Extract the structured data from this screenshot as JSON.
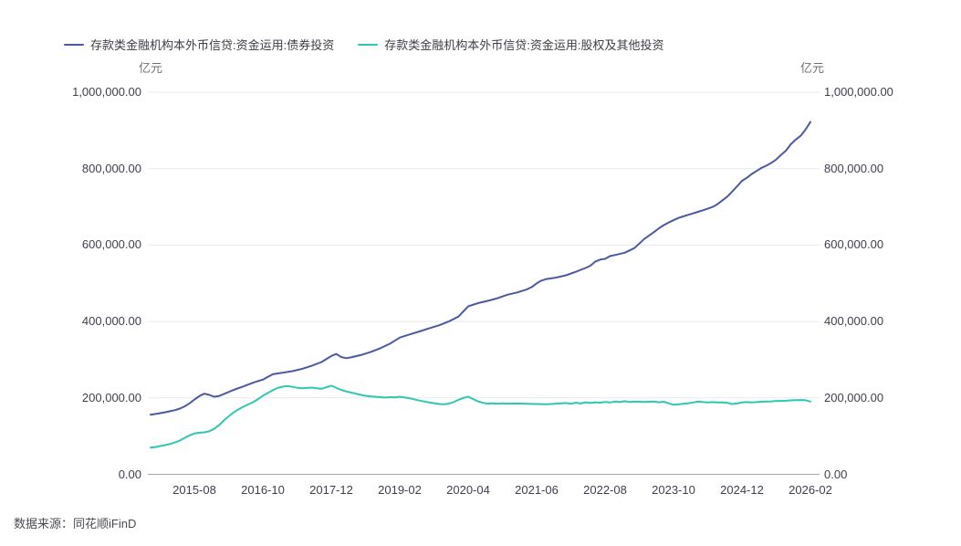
{
  "page": {
    "source_note": "数据来源：同花顺iFinD"
  },
  "axes": {
    "unit_left": "亿元",
    "unit_right": "亿元"
  },
  "chart_data": {
    "type": "line",
    "title": "",
    "ylabel": "亿元",
    "ylim": [
      0,
      1000000
    ],
    "grid": "horizontal",
    "legend_position": "top-left",
    "y_tick_labels": [
      "1,000,000.00",
      "800,000.00",
      "600,000.00",
      "400,000.00",
      "200,000.00",
      "0.00"
    ],
    "x_start": "2014-11",
    "x_end": "2026-02",
    "x_point_count": 136,
    "x_tick_labels": [
      "2015-08",
      "2016-10",
      "2017-12",
      "2019-02",
      "2020-04",
      "2021-06",
      "2022-08",
      "2023-10",
      "2024-12",
      "2026-02"
    ],
    "x_tick_indices": [
      9,
      23,
      37,
      51,
      65,
      79,
      93,
      107,
      121,
      135
    ],
    "series": [
      {
        "name": "存款类金融机构本外币信贷:资金运用:债券投资",
        "color": "#4B5AA0",
        "points": [
          [
            0,
            156000
          ],
          [
            1,
            158000
          ],
          [
            2,
            160000
          ],
          [
            3,
            162500
          ],
          [
            4,
            165000
          ],
          [
            5,
            168000
          ],
          [
            6,
            172000
          ],
          [
            7,
            178000
          ],
          [
            8,
            186000
          ],
          [
            9,
            196000
          ],
          [
            10,
            205000
          ],
          [
            11,
            211000
          ],
          [
            12,
            208000
          ],
          [
            13,
            203000
          ],
          [
            14,
            205000
          ],
          [
            15,
            210000
          ],
          [
            17,
            221000
          ],
          [
            19,
            230000
          ],
          [
            21,
            240000
          ],
          [
            23,
            248000
          ],
          [
            24,
            255000
          ],
          [
            25,
            262000
          ],
          [
            26,
            264000
          ],
          [
            27,
            266000
          ],
          [
            29,
            270000
          ],
          [
            31,
            276000
          ],
          [
            33,
            284000
          ],
          [
            35,
            294000
          ],
          [
            36,
            302000
          ],
          [
            37,
            310000
          ],
          [
            38,
            315000
          ],
          [
            39,
            307000
          ],
          [
            40,
            304000
          ],
          [
            41,
            306000
          ],
          [
            43,
            312000
          ],
          [
            45,
            320000
          ],
          [
            47,
            330000
          ],
          [
            49,
            342000
          ],
          [
            51,
            358000
          ],
          [
            53,
            366000
          ],
          [
            55,
            374000
          ],
          [
            57,
            382000
          ],
          [
            59,
            390000
          ],
          [
            61,
            400000
          ],
          [
            63,
            413000
          ],
          [
            65,
            440000
          ],
          [
            67,
            448000
          ],
          [
            69,
            454000
          ],
          [
            71,
            461000
          ],
          [
            73,
            470000
          ],
          [
            75,
            476000
          ],
          [
            77,
            484000
          ],
          [
            78,
            490000
          ],
          [
            79,
            500000
          ],
          [
            80,
            507000
          ],
          [
            81,
            511000
          ],
          [
            83,
            515000
          ],
          [
            85,
            521000
          ],
          [
            87,
            530000
          ],
          [
            89,
            540000
          ],
          [
            90,
            546000
          ],
          [
            91,
            557000
          ],
          [
            92,
            562000
          ],
          [
            93,
            564000
          ],
          [
            94,
            571000
          ],
          [
            95,
            574000
          ],
          [
            97,
            580000
          ],
          [
            99,
            592000
          ],
          [
            100,
            604000
          ],
          [
            101,
            616000
          ],
          [
            102,
            625000
          ],
          [
            103,
            634000
          ],
          [
            104,
            644000
          ],
          [
            105,
            652000
          ],
          [
            106,
            659000
          ],
          [
            107,
            665000
          ],
          [
            108,
            671000
          ],
          [
            109,
            675000
          ],
          [
            110,
            679000
          ],
          [
            111,
            683000
          ],
          [
            112,
            687000
          ],
          [
            113,
            691000
          ],
          [
            114,
            695000
          ],
          [
            115,
            700000
          ],
          [
            116,
            707000
          ],
          [
            117,
            717000
          ],
          [
            118,
            727000
          ],
          [
            119,
            740000
          ],
          [
            120,
            754000
          ],
          [
            121,
            768000
          ],
          [
            122,
            776000
          ],
          [
            123,
            786000
          ],
          [
            124,
            794000
          ],
          [
            125,
            802000
          ],
          [
            126,
            808000
          ],
          [
            127,
            815000
          ],
          [
            128,
            824000
          ],
          [
            129,
            836000
          ],
          [
            130,
            847000
          ],
          [
            131,
            864000
          ],
          [
            132,
            876000
          ],
          [
            133,
            886000
          ],
          [
            134,
            902000
          ],
          [
            135,
            922000
          ]
        ]
      },
      {
        "name": "存款类金融机构本外币信贷:资金运用:股权及其他投资",
        "color": "#2FC6B2",
        "points": [
          [
            0,
            70000
          ],
          [
            1,
            71500
          ],
          [
            2,
            74000
          ],
          [
            3,
            76500
          ],
          [
            4,
            79500
          ],
          [
            5,
            83500
          ],
          [
            6,
            88500
          ],
          [
            7,
            95500
          ],
          [
            8,
            102000
          ],
          [
            9,
            107000
          ],
          [
            10,
            109000
          ],
          [
            11,
            110000
          ],
          [
            12,
            112500
          ],
          [
            13,
            119000
          ],
          [
            14,
            128500
          ],
          [
            15,
            141000
          ],
          [
            16,
            152000
          ],
          [
            17,
            162000
          ],
          [
            18,
            170000
          ],
          [
            19,
            177000
          ],
          [
            20,
            183000
          ],
          [
            21,
            189000
          ],
          [
            22,
            197000
          ],
          [
            23,
            206000
          ],
          [
            24,
            213000
          ],
          [
            25,
            220000
          ],
          [
            26,
            226000
          ],
          [
            27,
            229500
          ],
          [
            28,
            231000
          ],
          [
            29,
            229000
          ],
          [
            30,
            226500
          ],
          [
            31,
            225000
          ],
          [
            32,
            226000
          ],
          [
            33,
            227000
          ],
          [
            34,
            225000
          ],
          [
            35,
            224000
          ],
          [
            36,
            228000
          ],
          [
            37,
            232000
          ],
          [
            38,
            226000
          ],
          [
            39,
            221000
          ],
          [
            40,
            217000
          ],
          [
            41,
            214000
          ],
          [
            42,
            211000
          ],
          [
            43,
            208000
          ],
          [
            44,
            205500
          ],
          [
            45,
            203500
          ],
          [
            46,
            203000
          ],
          [
            47,
            202000
          ],
          [
            48,
            201000
          ],
          [
            49,
            202000
          ],
          [
            50,
            201500
          ],
          [
            51,
            203000
          ],
          [
            52,
            201000
          ],
          [
            53,
            199000
          ],
          [
            55,
            193000
          ],
          [
            57,
            188000
          ],
          [
            59,
            184000
          ],
          [
            60,
            183500
          ],
          [
            61,
            185000
          ],
          [
            62,
            189000
          ],
          [
            63,
            195000
          ],
          [
            64,
            200000
          ],
          [
            65,
            203000
          ],
          [
            66,
            197000
          ],
          [
            67,
            191000
          ],
          [
            68,
            187000
          ],
          [
            69,
            185000
          ],
          [
            70,
            186000
          ],
          [
            71,
            184500
          ],
          [
            72,
            186000
          ],
          [
            73,
            185000
          ],
          [
            75,
            185500
          ],
          [
            77,
            184500
          ],
          [
            79,
            184000
          ],
          [
            81,
            183500
          ],
          [
            83,
            185000
          ],
          [
            85,
            186500
          ],
          [
            86,
            184500
          ],
          [
            87,
            187500
          ],
          [
            88,
            185500
          ],
          [
            89,
            188500
          ],
          [
            90,
            186500
          ],
          [
            91,
            188500
          ],
          [
            92,
            187500
          ],
          [
            93,
            189500
          ],
          [
            94,
            188000
          ],
          [
            95,
            190500
          ],
          [
            96,
            189000
          ],
          [
            97,
            191500
          ],
          [
            98,
            189500
          ],
          [
            99,
            190500
          ],
          [
            101,
            189500
          ],
          [
            103,
            190500
          ],
          [
            104,
            188500
          ],
          [
            105,
            190000
          ],
          [
            106,
            186000
          ],
          [
            107,
            182000
          ],
          [
            108,
            183000
          ],
          [
            109,
            184500
          ],
          [
            110,
            186000
          ],
          [
            111,
            188000
          ],
          [
            112,
            190500
          ],
          [
            113,
            189000
          ],
          [
            114,
            188000
          ],
          [
            115,
            189000
          ],
          [
            116,
            188000
          ],
          [
            117,
            188500
          ],
          [
            118,
            187000
          ],
          [
            119,
            184000
          ],
          [
            120,
            185500
          ],
          [
            121,
            188000
          ],
          [
            122,
            189000
          ],
          [
            123,
            188000
          ],
          [
            124,
            189000
          ],
          [
            125,
            190000
          ],
          [
            126,
            190500
          ],
          [
            127,
            191000
          ],
          [
            128,
            192000
          ],
          [
            129,
            192000
          ],
          [
            130,
            192500
          ],
          [
            131,
            193500
          ],
          [
            132,
            194000
          ],
          [
            133,
            194500
          ],
          [
            134,
            194000
          ],
          [
            135,
            190500
          ]
        ]
      }
    ]
  }
}
